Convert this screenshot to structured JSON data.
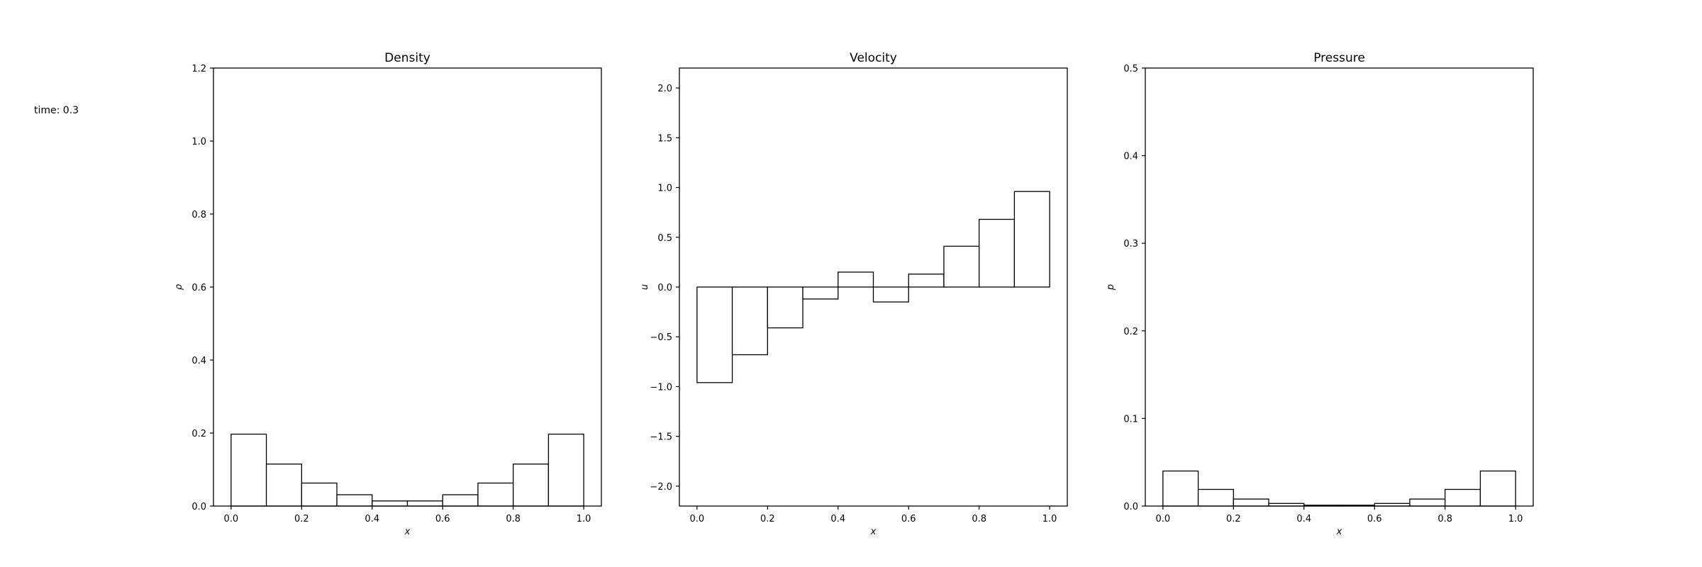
{
  "annotation": "time: 0.3",
  "chart_data": [
    {
      "type": "bar",
      "title": "Density",
      "xlabel": "x",
      "ylabel": "ρ",
      "xlim": [
        -0.05,
        1.05
      ],
      "ylim": [
        0,
        1.2
      ],
      "bin_edges": [
        0.0,
        0.1,
        0.2,
        0.3,
        0.4,
        0.5,
        0.6,
        0.7,
        0.8,
        0.9,
        1.0
      ],
      "values": [
        0.197,
        0.115,
        0.063,
        0.031,
        0.014,
        0.014,
        0.031,
        0.063,
        0.115,
        0.197
      ],
      "xticks": [
        0.0,
        0.2,
        0.4,
        0.6,
        0.8,
        1.0
      ],
      "xtick_labels": [
        "0.0",
        "0.2",
        "0.4",
        "0.6",
        "0.8",
        "1.0"
      ],
      "yticks": [
        0.0,
        0.2,
        0.4,
        0.6,
        0.8,
        1.0,
        1.2
      ],
      "ytick_labels": [
        "0.0",
        "0.2",
        "0.4",
        "0.6",
        "0.8",
        "1.0",
        "1.2"
      ],
      "grid": false,
      "bar_fill": "#ffffff",
      "bar_edge": "#000000"
    },
    {
      "type": "bar",
      "title": "Velocity",
      "xlabel": "x",
      "ylabel": "u",
      "xlim": [
        -0.05,
        1.05
      ],
      "ylim": [
        -2.2,
        2.2
      ],
      "bin_edges": [
        0.0,
        0.1,
        0.2,
        0.3,
        0.4,
        0.5,
        0.6,
        0.7,
        0.8,
        0.9,
        1.0
      ],
      "values": [
        -0.96,
        -0.68,
        -0.41,
        -0.12,
        0.15,
        -0.15,
        0.13,
        0.41,
        0.68,
        0.96
      ],
      "xticks": [
        0.0,
        0.2,
        0.4,
        0.6,
        0.8,
        1.0
      ],
      "xtick_labels": [
        "0.0",
        "0.2",
        "0.4",
        "0.6",
        "0.8",
        "1.0"
      ],
      "yticks": [
        -2.0,
        -1.5,
        -1.0,
        -0.5,
        0.0,
        0.5,
        1.0,
        1.5,
        2.0
      ],
      "ytick_labels": [
        "−2.0",
        "−1.5",
        "−1.0",
        "−0.5",
        "0.0",
        "0.5",
        "1.0",
        "1.5",
        "2.0"
      ],
      "grid": false,
      "bar_fill": "#ffffff",
      "bar_edge": "#000000"
    },
    {
      "type": "bar",
      "title": "Pressure",
      "xlabel": "x",
      "ylabel": "p",
      "xlim": [
        -0.05,
        1.05
      ],
      "ylim": [
        0,
        0.5
      ],
      "bin_edges": [
        0.0,
        0.1,
        0.2,
        0.3,
        0.4,
        0.5,
        0.6,
        0.7,
        0.8,
        0.9,
        1.0
      ],
      "values": [
        0.04,
        0.019,
        0.008,
        0.003,
        0.001,
        0.001,
        0.003,
        0.008,
        0.019,
        0.04
      ],
      "xticks": [
        0.0,
        0.2,
        0.4,
        0.6,
        0.8,
        1.0
      ],
      "xtick_labels": [
        "0.0",
        "0.2",
        "0.4",
        "0.6",
        "0.8",
        "1.0"
      ],
      "yticks": [
        0.0,
        0.1,
        0.2,
        0.3,
        0.4,
        0.5
      ],
      "ytick_labels": [
        "0.0",
        "0.1",
        "0.2",
        "0.3",
        "0.4",
        "0.5"
      ],
      "grid": false,
      "bar_fill": "#ffffff",
      "bar_edge": "#000000"
    }
  ]
}
